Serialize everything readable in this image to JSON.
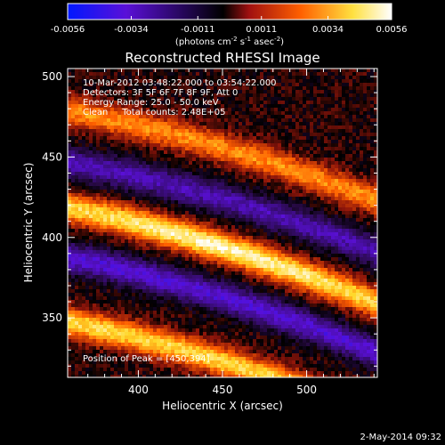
{
  "chart_data": {
    "type": "heatmap",
    "title": "Reconstructed RHESSI Image",
    "xlabel": "Heliocentric X (arcsec)",
    "ylabel": "Heliocentric Y (arcsec)",
    "xlim": [
      358,
      542
    ],
    "ylim": [
      313,
      505
    ],
    "x_ticks": [
      "400",
      "450",
      "500"
    ],
    "y_ticks": [
      "350",
      "400",
      "450",
      "500"
    ],
    "x_tick_values": [
      400,
      450,
      500
    ],
    "y_tick_values": [
      350,
      400,
      450,
      500
    ],
    "colorbar": {
      "range": [
        -0.0056,
        0.0056
      ],
      "tick_labels": [
        "-0.0056",
        "-0.0034",
        "-0.0011",
        "0.0011",
        "0.0034",
        "0.0056"
      ],
      "tick_values": [
        -0.0056,
        -0.0034,
        -0.0011,
        0.0011,
        0.0034,
        0.0056
      ],
      "units_parts": [
        "(photons cm",
        "-2",
        " s",
        "-1",
        " asec",
        "-2",
        ")"
      ],
      "colors": [
        "#0018ff",
        "#5a10d8",
        "#000000",
        "#b02010",
        "#ff7a00",
        "#ffff60",
        "#ffffff"
      ]
    },
    "annotations": [
      "10-Mar-2012 03:48:22.000 to 03:54:22.000",
      "Detectors: 3F 5F 6F 7F 8F 9F, Att 0",
      "Energy Range: 25.0 - 50.0 keV",
      "Clean     Total counts: 2.48E+05"
    ],
    "peak_label": "Position of Peak = [450,394]",
    "peak": [
      450,
      394
    ],
    "bands": [
      {
        "kind": "positive",
        "level": 0.003,
        "y_at_x400": 470,
        "slope": -0.28
      },
      {
        "kind": "negative",
        "level": -0.003,
        "y_at_x400": 438,
        "slope": -0.28
      },
      {
        "kind": "positive",
        "level": 0.0052,
        "y_at_x400": 409,
        "slope": -0.3
      },
      {
        "kind": "negative",
        "level": -0.0036,
        "y_at_x400": 378,
        "slope": -0.3
      },
      {
        "kind": "positive",
        "level": 0.0042,
        "y_at_x400": 338,
        "slope": -0.3
      }
    ]
  },
  "footer": {
    "date": "2-May-2014 09:32"
  }
}
